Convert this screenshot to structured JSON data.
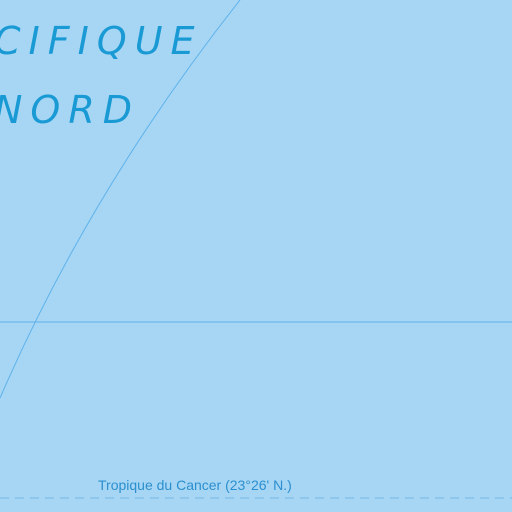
{
  "ocean_name": {
    "line1": "CIFIQUE",
    "line2": "NORD"
  },
  "tropic": {
    "label": "Tropique du Cancer (23°26' N.)"
  },
  "colors": {
    "ocean": "#a6d6f4",
    "label": "#1a9ad4",
    "graticule": "#5fb2ea",
    "tropic_line": "#7fbde8",
    "tropic_text": "#2c8fcf"
  }
}
